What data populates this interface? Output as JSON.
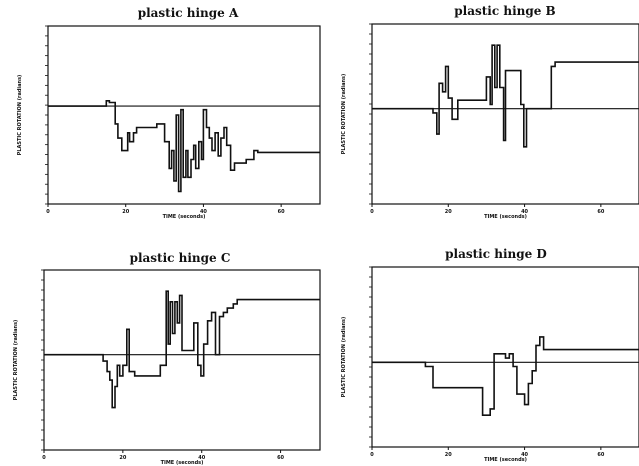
{
  "chart_data": [
    {
      "type": "line",
      "title": "plastic hinge A",
      "xlabel": "TIME (seconds)",
      "ylabel": "PLASTIC ROTATION (radians)",
      "xlim": [
        0,
        70
      ],
      "ylim": [
        -0.55,
        0.45
      ],
      "x_ticks": [
        0,
        20,
        40,
        60
      ],
      "x_tick_labels": [
        "0",
        "20",
        "40",
        "60"
      ],
      "reference_line": 0,
      "grid": false,
      "series": [
        {
          "x": [
            0,
            15,
            15,
            15.8,
            15.8,
            17.3,
            17.3,
            18,
            18,
            19,
            19,
            20.5,
            20.5,
            21,
            21,
            22,
            22,
            22.8,
            22.8,
            28,
            28,
            30,
            30,
            31.2,
            31.2,
            31.8,
            31.8,
            32.4,
            32.4,
            33,
            33,
            33.6,
            33.6,
            34.2,
            34.2,
            34.8,
            34.8,
            35.5,
            35.5,
            36,
            36,
            36.8,
            36.8,
            37.5,
            37.5,
            38,
            38,
            38.8,
            38.8,
            39.5,
            39.5,
            40,
            40,
            40.8,
            40.8,
            41.5,
            41.5,
            42.2,
            42.2,
            43,
            43,
            43.8,
            43.8,
            44.5,
            44.5,
            45.3,
            45.3,
            46,
            46,
            47,
            47,
            48,
            48,
            51,
            51,
            53,
            53,
            54,
            54,
            70
          ],
          "y": [
            0,
            0,
            0.03,
            0.03,
            0.02,
            0.02,
            -0.1,
            -0.1,
            -0.18,
            -0.18,
            -0.25,
            -0.25,
            -0.15,
            -0.15,
            -0.2,
            -0.2,
            -0.15,
            -0.15,
            -0.12,
            -0.12,
            -0.1,
            -0.1,
            -0.2,
            -0.2,
            -0.35,
            -0.35,
            -0.25,
            -0.25,
            -0.42,
            -0.42,
            -0.05,
            -0.05,
            -0.48,
            -0.48,
            -0.02,
            -0.02,
            -0.4,
            -0.4,
            -0.25,
            -0.25,
            -0.4,
            -0.4,
            -0.3,
            -0.3,
            -0.22,
            -0.22,
            -0.35,
            -0.35,
            -0.2,
            -0.2,
            -0.3,
            -0.3,
            -0.02,
            -0.02,
            -0.12,
            -0.12,
            -0.18,
            -0.18,
            -0.25,
            -0.25,
            -0.15,
            -0.15,
            -0.28,
            -0.28,
            -0.18,
            -0.18,
            -0.12,
            -0.12,
            -0.22,
            -0.22,
            -0.36,
            -0.36,
            -0.32,
            -0.32,
            -0.3,
            -0.3,
            -0.25,
            -0.25,
            -0.26,
            -0.26
          ]
        }
      ]
    },
    {
      "type": "line",
      "title": "plastic hinge B",
      "xlabel": "TIME (seconds)",
      "ylabel": "PLASTIC ROTATION (radians)",
      "xlim": [
        0,
        70
      ],
      "ylim": [
        -0.45,
        0.4
      ],
      "x_ticks": [
        0,
        20,
        40,
        60
      ],
      "x_tick_labels": [
        "0",
        "20",
        "40",
        "60"
      ],
      "reference_line": 0,
      "grid": false,
      "series": [
        {
          "x": [
            0,
            16,
            16,
            17,
            17,
            17.6,
            17.6,
            18.5,
            18.5,
            19.3,
            19.3,
            20,
            20,
            21,
            21,
            22.5,
            22.5,
            30,
            30,
            31,
            31,
            31.5,
            31.5,
            32.2,
            32.2,
            32.8,
            32.8,
            33.5,
            33.5,
            34.5,
            34.5,
            35,
            35,
            38,
            38,
            39,
            39,
            39.8,
            39.8,
            40.5,
            40.5,
            42,
            42,
            47,
            47,
            48,
            48,
            70
          ],
          "y": [
            0,
            0,
            -0.02,
            -0.02,
            -0.12,
            -0.12,
            0.12,
            0.12,
            0.08,
            0.08,
            0.2,
            0.2,
            0.05,
            0.05,
            -0.05,
            -0.05,
            0.04,
            0.04,
            0.15,
            0.15,
            0.02,
            0.02,
            0.3,
            0.3,
            0.1,
            0.1,
            0.3,
            0.3,
            0.1,
            0.1,
            -0.15,
            -0.15,
            0.18,
            0.18,
            0.18,
            0.18,
            0.02,
            0.02,
            -0.18,
            -0.18,
            0.0,
            0.0,
            0.0,
            0.0,
            0.2,
            0.2,
            0.22,
            0.22
          ]
        }
      ]
    },
    {
      "type": "line",
      "title": "plastic hinge C",
      "xlabel": "TIME (seconds)",
      "ylabel": "PLASTIC ROTATION (radians)",
      "xlim": [
        0,
        70
      ],
      "ylim": [
        -0.45,
        0.4
      ],
      "x_ticks": [
        0,
        20,
        40,
        60
      ],
      "x_tick_labels": [
        "0",
        "20",
        "40",
        "60"
      ],
      "reference_line": 0,
      "grid": false,
      "series": [
        {
          "x": [
            0,
            15,
            15,
            16,
            16,
            16.7,
            16.7,
            17.3,
            17.3,
            18,
            18,
            18.6,
            18.6,
            19.2,
            19.2,
            20,
            20,
            21,
            21,
            21.6,
            21.6,
            23,
            23,
            28,
            28,
            29.5,
            29.5,
            31,
            31,
            31.5,
            31.5,
            32,
            32,
            32.6,
            32.6,
            33.2,
            33.2,
            33.8,
            33.8,
            34.4,
            34.4,
            35,
            35,
            35.5,
            35.5,
            38,
            38,
            39,
            39,
            39.8,
            39.8,
            40.5,
            40.5,
            41.5,
            41.5,
            42.5,
            42.5,
            43.5,
            43.5,
            44.5,
            44.5,
            45.5,
            45.5,
            46.5,
            46.5,
            48,
            48,
            49,
            49,
            70
          ],
          "y": [
            0,
            0,
            -0.03,
            -0.03,
            -0.08,
            -0.08,
            -0.12,
            -0.12,
            -0.25,
            -0.25,
            -0.15,
            -0.15,
            -0.05,
            -0.05,
            -0.1,
            -0.1,
            -0.05,
            -0.05,
            0.12,
            0.12,
            -0.08,
            -0.08,
            -0.1,
            -0.1,
            -0.1,
            -0.1,
            -0.05,
            -0.05,
            0.3,
            0.3,
            0.05,
            0.05,
            0.25,
            0.25,
            0.1,
            0.1,
            0.25,
            0.25,
            0.15,
            0.15,
            0.28,
            0.28,
            0.02,
            0.02,
            0.02,
            0.02,
            0.15,
            0.15,
            -0.05,
            -0.05,
            -0.1,
            -0.1,
            0.05,
            0.05,
            0.16,
            0.16,
            0.2,
            0.2,
            0.0,
            0.0,
            0.18,
            0.18,
            0.2,
            0.2,
            0.22,
            0.22,
            0.24,
            0.24,
            0.26,
            0.26
          ]
        }
      ]
    },
    {
      "type": "line",
      "title": "plastic hinge D",
      "xlabel": "TIME (seconds)",
      "ylabel": "PLASTIC ROTATION (radians)",
      "xlim": [
        0,
        70
      ],
      "ylim": [
        -0.4,
        0.45
      ],
      "x_ticks": [
        0,
        20,
        40,
        60
      ],
      "x_tick_labels": [
        "0",
        "20",
        "40",
        "60"
      ],
      "reference_line": 0,
      "grid": false,
      "series": [
        {
          "x": [
            0,
            14,
            14,
            16,
            16,
            26,
            26,
            29,
            29,
            30,
            30,
            31,
            31,
            32,
            32,
            35,
            35,
            36,
            36,
            37,
            37,
            38,
            38,
            40,
            40,
            41,
            41,
            42,
            42,
            43,
            43,
            44,
            44,
            45,
            45,
            46,
            46,
            70
          ],
          "y": [
            0,
            0,
            -0.02,
            -0.02,
            -0.12,
            -0.12,
            -0.12,
            -0.12,
            -0.25,
            -0.25,
            -0.25,
            -0.25,
            -0.22,
            -0.22,
            0.04,
            0.04,
            0.02,
            0.02,
            0.04,
            0.04,
            -0.02,
            -0.02,
            -0.15,
            -0.15,
            -0.2,
            -0.2,
            -0.1,
            -0.1,
            -0.04,
            -0.04,
            0.08,
            0.08,
            0.12,
            0.12,
            0.06,
            0.06,
            0.06,
            0.06
          ]
        }
      ]
    }
  ]
}
